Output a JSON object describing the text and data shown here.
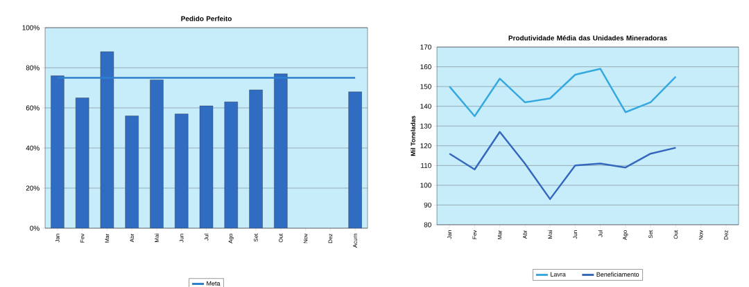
{
  "chart_data": [
    {
      "type": "bar",
      "title": "Pedido Perfeito",
      "categories": [
        "Jan",
        "Fev",
        "Mar",
        "Abr",
        "Mai",
        "Jun",
        "Jul",
        "Ago",
        "Set",
        "Out",
        "Nov",
        "Dez",
        "Acum"
      ],
      "series": [
        {
          "type": "bar",
          "color": "#2f6cc2",
          "values": [
            76,
            65,
            88,
            56,
            74,
            57,
            61,
            63,
            69,
            77,
            null,
            null,
            68
          ]
        },
        {
          "type": "line",
          "name": "Meta",
          "color": "#2f7fd0",
          "values": [
            75,
            75,
            75,
            75,
            75,
            75,
            75,
            75,
            75,
            75,
            75,
            75,
            75
          ]
        }
      ],
      "ylim": [
        0,
        100
      ],
      "yticks": [
        {
          "value": 0,
          "label": "0%"
        },
        {
          "value": 20,
          "label": "20%"
        },
        {
          "value": 40,
          "label": "40%"
        },
        {
          "value": 60,
          "label": "60%"
        },
        {
          "value": 80,
          "label": "80%"
        },
        {
          "value": 100,
          "label": "100%"
        }
      ],
      "grid": "y",
      "legend": "bottom"
    },
    {
      "type": "line",
      "title": "Produtividade Média das Unidades Mineradoras",
      "ylabel": "Mil Toneladas",
      "categories": [
        "Jan",
        "Fev",
        "Mar",
        "Abr",
        "Mai",
        "Jun",
        "Jul",
        "Ago",
        "Set",
        "Out",
        "Nov",
        "Dez"
      ],
      "series": [
        {
          "name": "Lavra",
          "color": "#35a8e0",
          "values": [
            150,
            135,
            154,
            142,
            144,
            156,
            159,
            137,
            142,
            155,
            null,
            null
          ]
        },
        {
          "name": "Beneficiamento",
          "color": "#3467bd",
          "values": [
            116,
            108,
            127,
            111,
            93,
            110,
            111,
            109,
            116,
            119,
            null,
            null
          ]
        }
      ],
      "ylim": [
        80,
        170
      ],
      "yticks": [
        80,
        90,
        100,
        110,
        120,
        130,
        140,
        150,
        160,
        170
      ],
      "grid": "y",
      "legend": "bottom"
    }
  ]
}
